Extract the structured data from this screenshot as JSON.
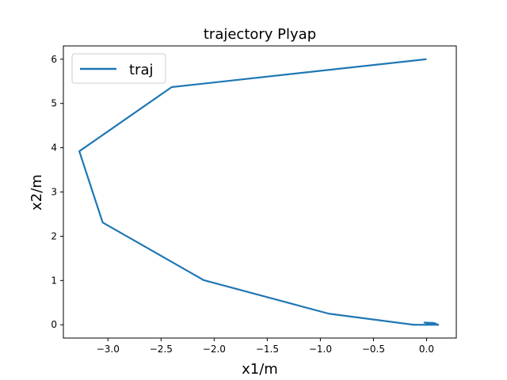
{
  "chart_data": {
    "type": "line",
    "title": "trajectory Plyap",
    "xlabel": "x1/m",
    "ylabel": "x2/m",
    "xlim": [
      -3.42,
      0.28
    ],
    "ylim": [
      -0.3,
      6.3
    ],
    "xticks": [
      -3.0,
      -2.5,
      -2.0,
      -1.5,
      -1.0,
      -0.5,
      0.0
    ],
    "xtick_labels": [
      "−3.0",
      "−2.5",
      "−2.0",
      "−1.5",
      "−1.0",
      "−0.5",
      "0.0"
    ],
    "yticks": [
      0,
      1,
      2,
      3,
      4,
      5,
      6
    ],
    "ytick_labels": [
      "0",
      "1",
      "2",
      "3",
      "4",
      "5",
      "6"
    ],
    "grid": false,
    "legend_position": "top-left",
    "series": [
      {
        "name": "traj",
        "color": "#1f77b4",
        "x": [
          0.0,
          -2.4,
          -3.27,
          -3.05,
          -2.1,
          -0.92,
          -0.12,
          0.11,
          0.07,
          -0.02,
          0.06,
          0.01
        ],
        "y": [
          6.0,
          5.37,
          3.92,
          2.31,
          1.01,
          0.25,
          0.0,
          0.0,
          0.04,
          0.05,
          0.01,
          0.02
        ]
      }
    ]
  }
}
